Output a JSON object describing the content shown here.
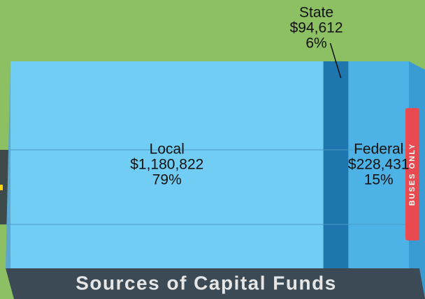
{
  "chart_data": {
    "type": "stacked-bar",
    "title": "Sources of Capital Funds",
    "sign": "BUSES ONLY",
    "series": [
      {
        "name": "Local",
        "color": "#72cdf4",
        "values": [
          1180822
        ],
        "value_labels": [
          "$1,180,822"
        ],
        "share": {
          "value": 79,
          "label": "79%"
        }
      },
      {
        "name": "State",
        "color": "#1f75ad",
        "values": [
          94612
        ],
        "value_labels": [
          "$94,612"
        ],
        "share": {
          "value": 6,
          "label": "6%"
        }
      },
      {
        "name": "Federal",
        "color": "#4db3e6",
        "values": [
          228431
        ],
        "value_labels": [
          "$228,431"
        ],
        "share": {
          "value": 15,
          "label": "15%"
        }
      }
    ]
  }
}
